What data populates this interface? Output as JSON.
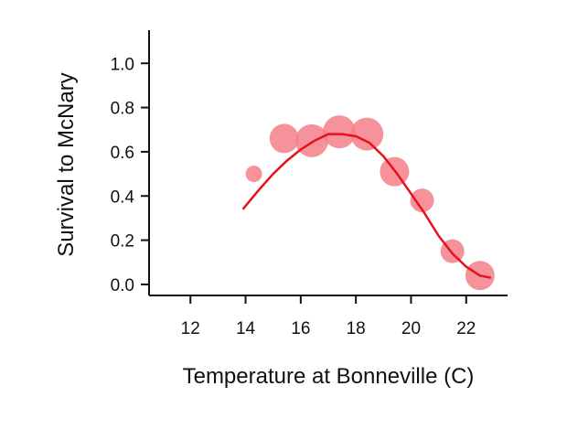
{
  "chart_data": {
    "type": "scatter",
    "xlabel": "Temperature at Bonneville (C)",
    "ylabel": "Survival to McNary",
    "xlim": [
      10.5,
      23.5
    ],
    "ylim": [
      -0.05,
      1.15
    ],
    "x_ticks": [
      "12",
      "14",
      "16",
      "18",
      "20",
      "22"
    ],
    "y_ticks": [
      "0.0",
      "0.2",
      "0.4",
      "0.6",
      "0.8",
      "1.0"
    ],
    "points": [
      {
        "x": 14.3,
        "y": 0.5,
        "size": 1
      },
      {
        "x": 15.4,
        "y": 0.66,
        "size": 3
      },
      {
        "x": 16.4,
        "y": 0.65,
        "size": 4
      },
      {
        "x": 17.4,
        "y": 0.69,
        "size": 4
      },
      {
        "x": 18.4,
        "y": 0.68,
        "size": 4
      },
      {
        "x": 19.4,
        "y": 0.51,
        "size": 3
      },
      {
        "x": 20.4,
        "y": 0.38,
        "size": 2
      },
      {
        "x": 21.5,
        "y": 0.15,
        "size": 2
      },
      {
        "x": 22.5,
        "y": 0.04,
        "size": 3
      }
    ],
    "fit_curve": {
      "x": [
        13.9,
        14.5,
        15.0,
        15.5,
        16.0,
        16.5,
        17.0,
        17.5,
        18.0,
        18.5,
        19.0,
        19.5,
        20.0,
        20.5,
        21.0,
        21.5,
        22.0,
        22.5,
        22.9
      ],
      "y": [
        0.34,
        0.43,
        0.5,
        0.56,
        0.61,
        0.65,
        0.68,
        0.68,
        0.67,
        0.64,
        0.58,
        0.5,
        0.41,
        0.32,
        0.22,
        0.14,
        0.08,
        0.04,
        0.03
      ]
    },
    "colors": {
      "points": "#f48088",
      "curve": "#e8101a",
      "axis": "#111111"
    },
    "grid": false
  }
}
